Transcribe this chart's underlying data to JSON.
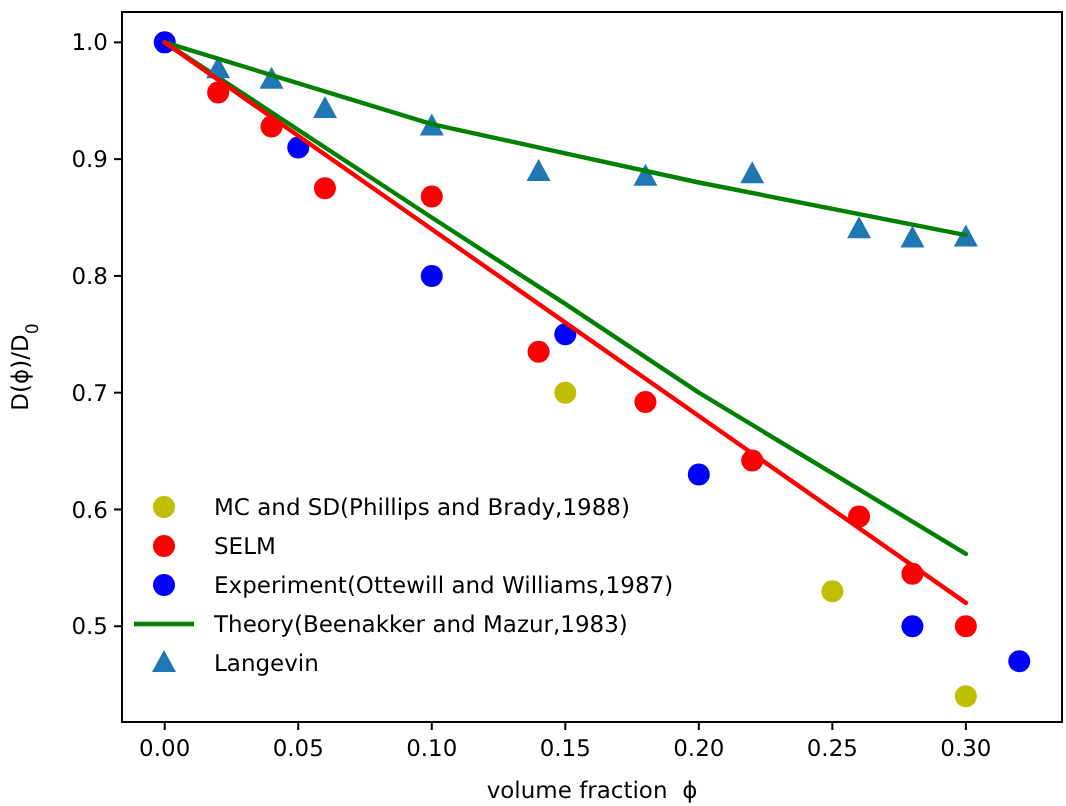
{
  "chart_data": {
    "type": "scatter",
    "xlabel": "volume fraction  ϕ",
    "ylabel": "D(ϕ)/D$_{0}$",
    "xlim": [
      -0.016,
      0.336
    ],
    "ylim": [
      0.418,
      1.026
    ],
    "xticks": [
      {
        "value": 0,
        "label": "0.00"
      },
      {
        "value": 0.05,
        "label": "0.05"
      },
      {
        "value": 0.1,
        "label": "0.10"
      },
      {
        "value": 0.15,
        "label": "0.15"
      },
      {
        "value": 0.2,
        "label": "0.20"
      },
      {
        "value": 0.25,
        "label": "0.25"
      },
      {
        "value": 0.3,
        "label": "0.30"
      }
    ],
    "yticks": [
      {
        "value": 0.5,
        "label": "0.5"
      },
      {
        "value": 0.6,
        "label": "0.6"
      },
      {
        "value": 0.7,
        "label": "0.7"
      },
      {
        "value": 0.8,
        "label": "0.8"
      },
      {
        "value": 0.9,
        "label": "0.9"
      },
      {
        "value": 1.0,
        "label": "1.0"
      }
    ],
    "grid": false,
    "legend": "bottom left",
    "series": [
      {
        "name": "MC and SD(Phillips and Brady,1988)",
        "marker": "circle",
        "color": "#bfbf00",
        "x": [
          0.15,
          0.25,
          0.3
        ],
        "values": [
          0.7,
          0.53,
          0.44
        ]
      },
      {
        "name": "SELM",
        "marker": "circle",
        "color": "#ff0000",
        "x": [
          0.02,
          0.04,
          0.06,
          0.1,
          0.14,
          0.18,
          0.22,
          0.26,
          0.28,
          0.3
        ],
        "values": [
          0.957,
          0.928,
          0.875,
          0.868,
          0.735,
          0.692,
          0.642,
          0.594,
          0.545,
          0.5
        ]
      },
      {
        "name": "Experiment(Ottewill and Williams,1987)",
        "marker": "circle",
        "color": "#0000ff",
        "x": [
          0,
          0.05,
          0.1,
          0.15,
          0.2,
          0.28,
          0.32
        ],
        "values": [
          1.0,
          0.91,
          0.8,
          0.75,
          0.63,
          0.5,
          0.47
        ]
      },
      {
        "name": "Theory(Beenakker and Mazur,1983)",
        "type": "line",
        "marker": "none",
        "color": "#008000",
        "x": [
          0,
          0.1,
          0.15,
          0.2,
          0.3
        ],
        "values": [
          1.0,
          0.85,
          0.776,
          0.7,
          0.562
        ]
      },
      {
        "name": "Langevin",
        "marker": "triangle",
        "color": "#1f77b4",
        "x": [
          0.02,
          0.04,
          0.06,
          0.1,
          0.14,
          0.18,
          0.22,
          0.26,
          0.28,
          0.3
        ],
        "values": [
          0.977,
          0.968,
          0.943,
          0.928,
          0.889,
          0.885,
          0.887,
          0.84,
          0.832,
          0.833
        ]
      },
      {
        "type": "line",
        "marker": "none",
        "color": "#008000",
        "x": [
          0,
          0.1,
          0.15,
          0.2,
          0.3
        ],
        "values": [
          1.0,
          0.93,
          0.905,
          0.88,
          0.835
        ]
      },
      {
        "type": "line",
        "marker": "none",
        "color": "#ff0000",
        "x": [
          0,
          0.3
        ],
        "values": [
          1.0,
          0.52
        ]
      }
    ]
  }
}
